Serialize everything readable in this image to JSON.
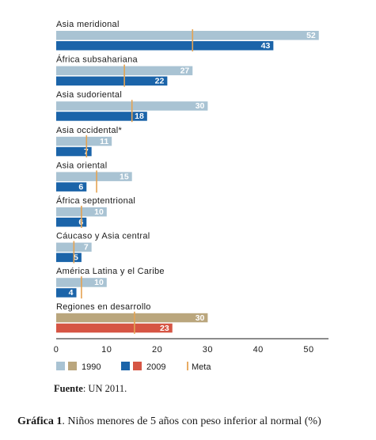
{
  "chart_data": {
    "type": "bar",
    "orientation": "horizontal",
    "categories": [
      "Asia meridional",
      "África subsahariana",
      "Asia sudoriental",
      "Asia occidental*",
      "Asia oriental",
      "África septentrional",
      "Cáucaso y Asia central",
      "América Latina y el Caribe",
      "Regiones en desarrollo"
    ],
    "series": [
      {
        "name": "1990",
        "values": [
          52,
          27,
          30,
          11,
          15,
          10,
          7,
          10,
          30
        ]
      },
      {
        "name": "2009",
        "values": [
          43,
          22,
          18,
          7,
          6,
          6,
          5,
          4,
          23
        ]
      }
    ],
    "meta": [
      27,
      13.5,
      15,
      6,
      8,
      5,
      3.5,
      5,
      15.5
    ],
    "meta_label": "Meta",
    "x_ticks": [
      "0",
      "10",
      "20",
      "30",
      "40",
      "50"
    ],
    "xlim": [
      0,
      50
    ],
    "legend": {
      "items": [
        "1990",
        "2009",
        "Meta"
      ],
      "placement": "bottom-left"
    },
    "colors": {
      "v1990": "#a9c3d3",
      "v2009": "#1b64a9",
      "v1990_total": "#baa67d",
      "v2009_total": "#d65544",
      "meta": "#e5a352"
    },
    "title": ""
  },
  "source": {
    "label": "Fuente",
    "text": ": UN 2011."
  },
  "caption": {
    "label": "Gráfica 1",
    "text": ". Niños menores de 5 años con peso inferior al normal (%)"
  }
}
